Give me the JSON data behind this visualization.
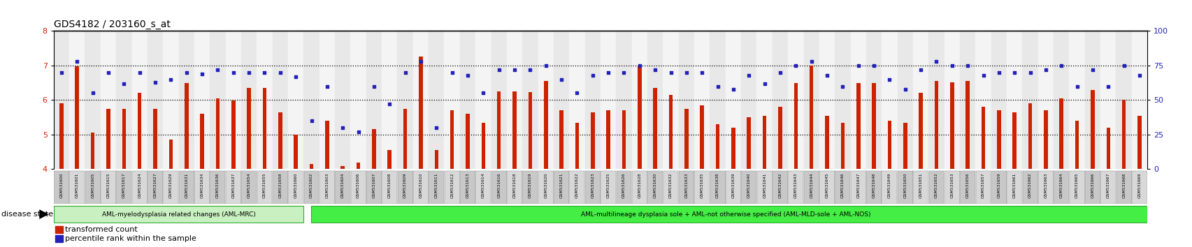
{
  "title": "GDS4182 / 203160_s_at",
  "samples": [
    "GSM531600",
    "GSM531601",
    "GSM531605",
    "GSM531615",
    "GSM531617",
    "GSM531624",
    "GSM531627",
    "GSM531629",
    "GSM531631",
    "GSM531634",
    "GSM531636",
    "GSM531637",
    "GSM531654",
    "GSM531655",
    "GSM531658",
    "GSM531660",
    "GSM531602",
    "GSM531603",
    "GSM531604",
    "GSM531606",
    "GSM531607",
    "GSM531608",
    "GSM531609",
    "GSM531610",
    "GSM531611",
    "GSM531612",
    "GSM531613",
    "GSM531614",
    "GSM531616",
    "GSM531618",
    "GSM531619",
    "GSM531620",
    "GSM531621",
    "GSM531622",
    "GSM531623",
    "GSM531625",
    "GSM531626",
    "GSM531628",
    "GSM531630",
    "GSM531632",
    "GSM531633",
    "GSM531635",
    "GSM531638",
    "GSM531639",
    "GSM531640",
    "GSM531641",
    "GSM531642",
    "GSM531643",
    "GSM531644",
    "GSM531645",
    "GSM531646",
    "GSM531647",
    "GSM531648",
    "GSM531649",
    "GSM531650",
    "GSM531651",
    "GSM531652",
    "GSM531653",
    "GSM531656",
    "GSM531657",
    "GSM531659",
    "GSM531661",
    "GSM531662",
    "GSM531663",
    "GSM531664",
    "GSM531665",
    "GSM531666",
    "GSM531667",
    "GSM531668",
    "GSM531669"
  ],
  "bar_values": [
    5.9,
    6.97,
    5.05,
    5.75,
    5.75,
    6.2,
    5.75,
    4.85,
    6.5,
    5.6,
    6.05,
    5.98,
    6.35,
    6.35,
    5.65,
    5.0,
    4.15,
    5.4,
    4.1,
    4.2,
    5.15,
    4.55,
    5.75,
    7.25,
    4.55,
    5.7,
    5.6,
    5.35,
    6.25,
    6.25,
    6.22,
    6.55,
    5.7,
    5.35,
    5.65,
    5.7,
    5.7,
    7.0,
    6.35,
    6.15,
    5.75,
    5.85,
    5.3,
    5.2,
    5.5,
    5.55,
    5.8,
    6.5,
    7.0,
    5.55,
    5.35,
    6.5,
    6.5,
    5.4,
    5.35,
    6.2,
    6.55,
    6.52,
    6.55,
    5.8,
    5.7,
    5.65,
    5.9,
    5.7,
    6.05,
    5.4,
    6.3,
    5.2,
    6.0,
    5.55
  ],
  "dot_values_pct": [
    70,
    78,
    55,
    70,
    62,
    70,
    63,
    65,
    70,
    69,
    72,
    70,
    70,
    70,
    70,
    67,
    35,
    60,
    30,
    27,
    60,
    47,
    70,
    78,
    30,
    70,
    68,
    55,
    72,
    72,
    72,
    75,
    65,
    55,
    68,
    70,
    70,
    75,
    72,
    70,
    70,
    70,
    60,
    58,
    68,
    62,
    70,
    75,
    78,
    68,
    60,
    75,
    75,
    65,
    58,
    72,
    78,
    75,
    75,
    68,
    70,
    70,
    70,
    72,
    75,
    60,
    72,
    60,
    75,
    68
  ],
  "group1_count": 16,
  "group1_label": "AML-myelodysplasia related changes (AML-MRC)",
  "group2_label": "AML-multilineage dysplasia sole + AML-not otherwise specified (AML-MLD-sole + AML-NOS)",
  "group1_color": "#c8f0c0",
  "group2_color": "#44ee44",
  "bar_color": "#cc2200",
  "dot_color": "#2222bb",
  "ylim_left": [
    4,
    8
  ],
  "ylim_right": [
    0,
    100
  ],
  "yticks_left": [
    4,
    5,
    6,
    7,
    8
  ],
  "yticks_right": [
    0,
    25,
    50,
    75,
    100
  ],
  "hlines": [
    5,
    6,
    7
  ],
  "bar_width": 0.25,
  "legend_bar_label": "transformed count",
  "legend_dot_label": "percentile rank within the sample",
  "disease_state_label": "disease state"
}
